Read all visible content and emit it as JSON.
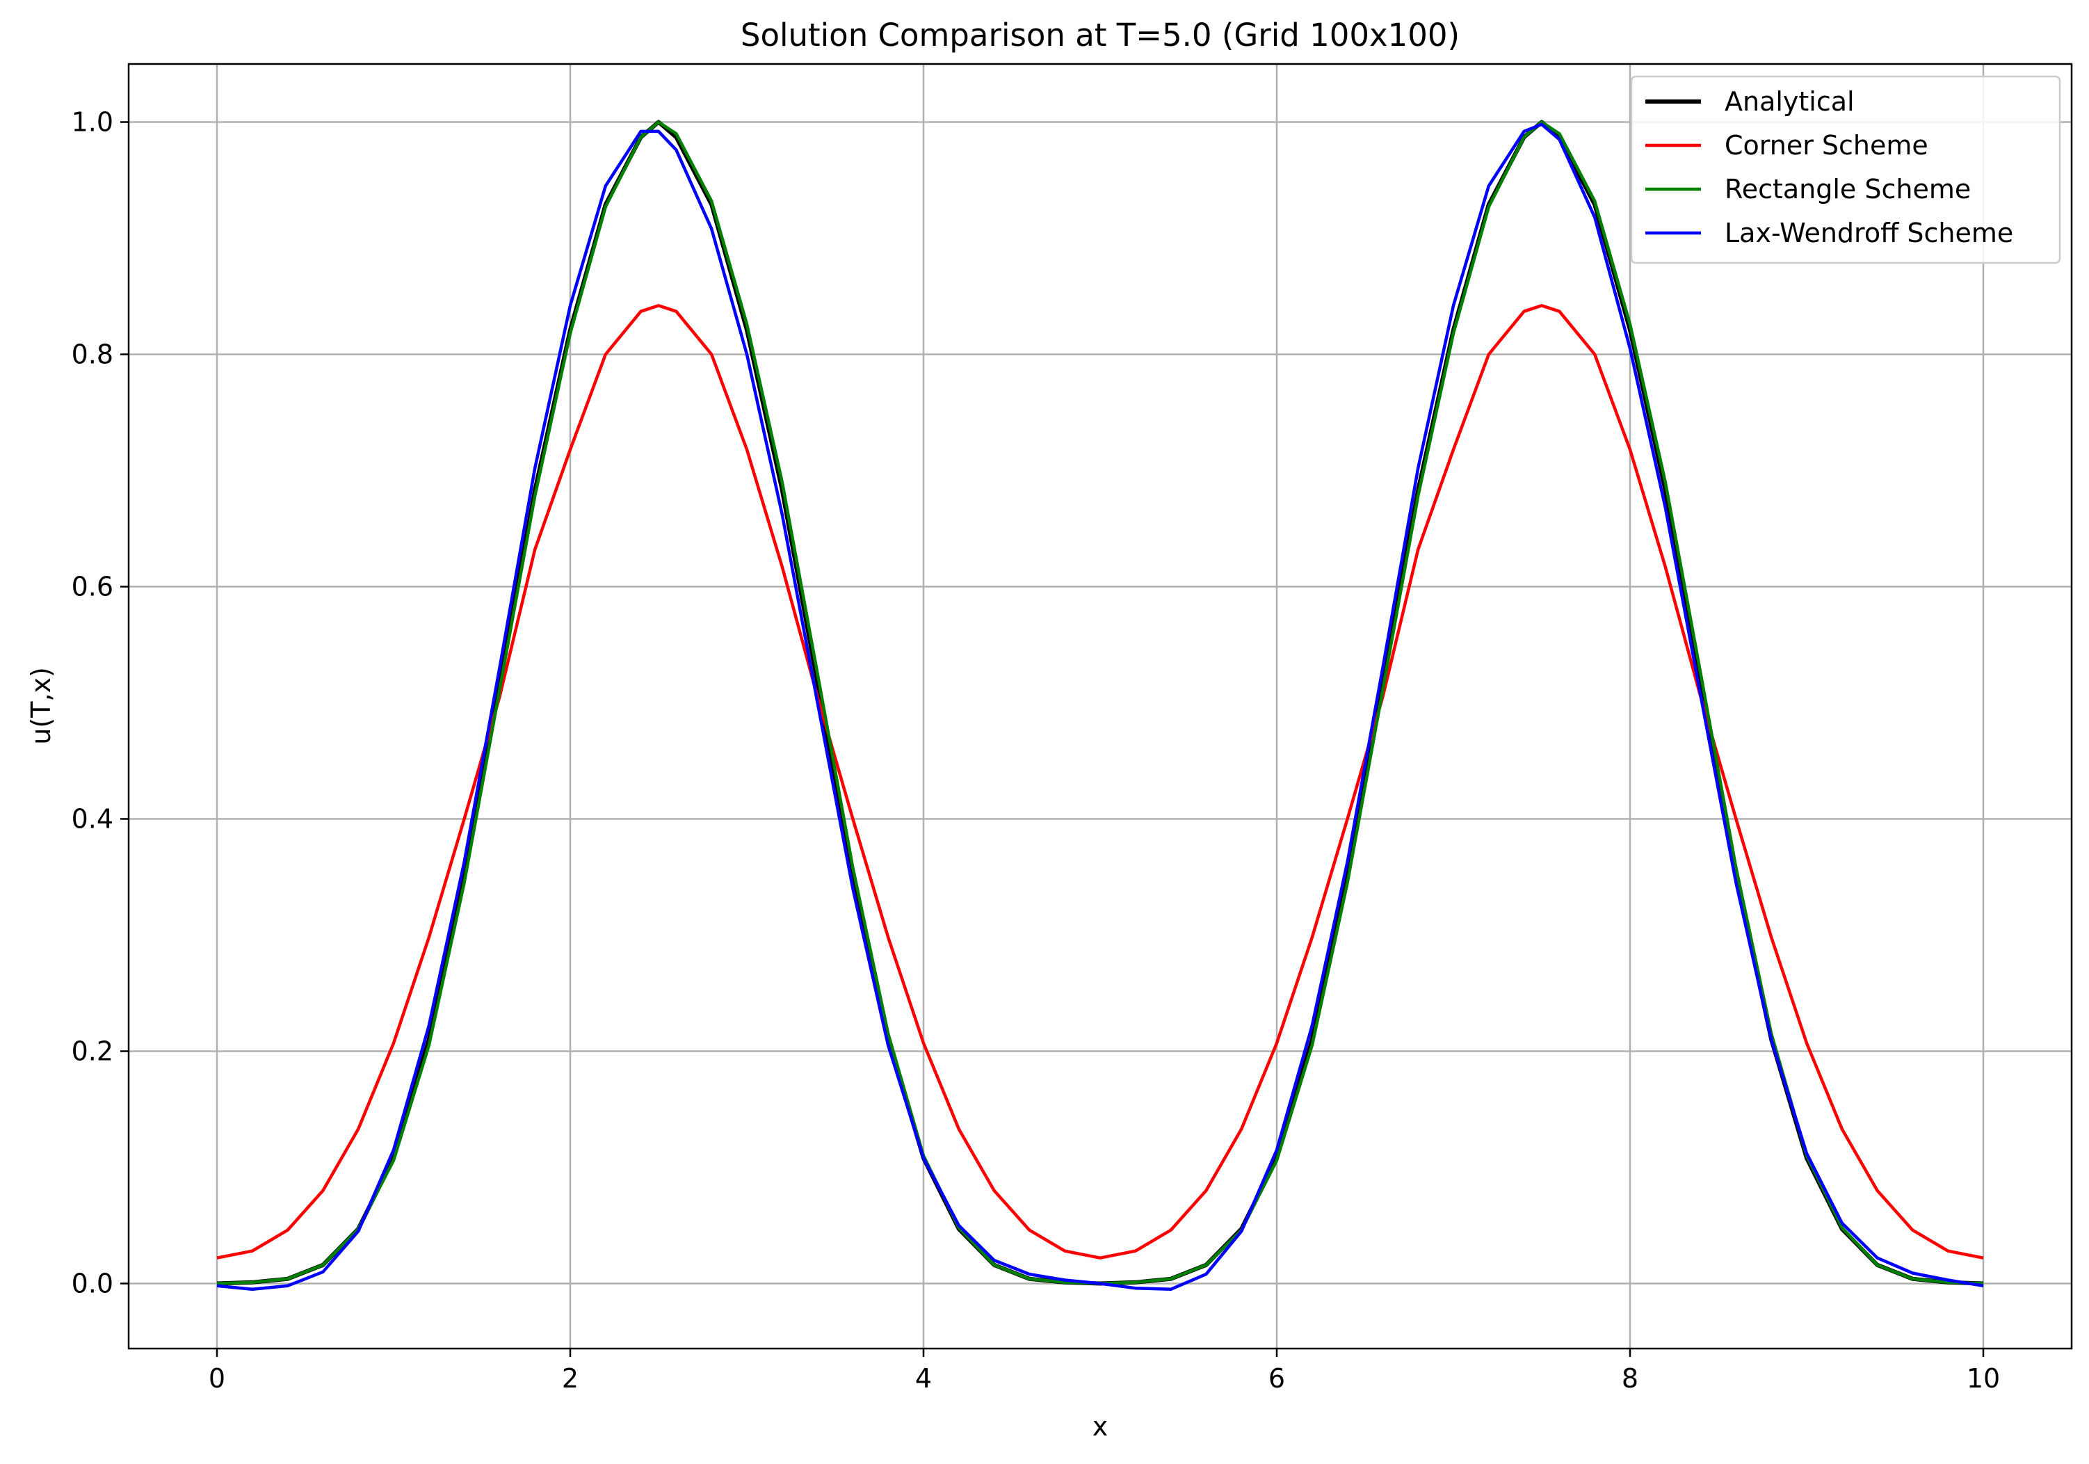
{
  "chart_data": {
    "type": "line",
    "title": "Solution Comparison at T=5.0 (Grid 100x100)",
    "xlabel": "x",
    "ylabel": "u(T,x)",
    "xlim": [
      -0.5,
      10.5
    ],
    "ylim": [
      -0.056,
      1.05
    ],
    "xticks": [
      0,
      2,
      4,
      6,
      8,
      10
    ],
    "xtick_labels": [
      "0",
      "2",
      "4",
      "6",
      "8",
      "10"
    ],
    "yticks": [
      0.0,
      0.2,
      0.4,
      0.6,
      0.8,
      1.0
    ],
    "ytick_labels": [
      "0.0",
      "0.2",
      "0.4",
      "0.6",
      "0.8",
      "1.0"
    ],
    "grid": true,
    "legend_position": "top-right",
    "series": [
      {
        "name": "Analytical",
        "color": "#000000",
        "x": [
          0,
          0.2,
          0.4,
          0.6,
          0.8,
          1.0,
          1.2,
          1.4,
          1.6,
          1.8,
          2.0,
          2.2,
          2.4,
          2.5,
          2.6,
          2.8,
          3.0,
          3.2,
          3.4,
          3.6,
          3.8,
          4.0,
          4.2,
          4.4,
          4.6,
          4.8,
          5.0,
          5.2,
          5.4,
          5.6,
          5.8,
          6.0,
          6.2,
          6.4,
          6.6,
          6.8,
          7.0,
          7.2,
          7.4,
          7.5,
          7.6,
          7.8,
          8.0,
          8.2,
          8.4,
          8.6,
          8.8,
          9.0,
          9.2,
          9.4,
          9.6,
          9.8,
          10.0
        ],
        "values": [
          0.0,
          0.001,
          0.004,
          0.016,
          0.047,
          0.108,
          0.21,
          0.351,
          0.517,
          0.683,
          0.821,
          0.929,
          0.987,
          1.0,
          0.987,
          0.929,
          0.821,
          0.683,
          0.517,
          0.351,
          0.21,
          0.108,
          0.047,
          0.016,
          0.004,
          0.001,
          0.0,
          0.001,
          0.004,
          0.016,
          0.047,
          0.108,
          0.21,
          0.351,
          0.517,
          0.683,
          0.821,
          0.929,
          0.987,
          1.0,
          0.987,
          0.929,
          0.821,
          0.683,
          0.517,
          0.351,
          0.21,
          0.108,
          0.047,
          0.016,
          0.004,
          0.001,
          0.0
        ]
      },
      {
        "name": "Corner Scheme",
        "color": "#ff0000",
        "x": [
          0,
          0.2,
          0.4,
          0.6,
          0.8,
          1.0,
          1.2,
          1.4,
          1.6,
          1.8,
          2.0,
          2.2,
          2.4,
          2.5,
          2.6,
          2.8,
          3.0,
          3.2,
          3.4,
          3.6,
          3.8,
          4.0,
          4.2,
          4.4,
          4.6,
          4.8,
          5.0,
          5.2,
          5.4,
          5.6,
          5.8,
          6.0,
          6.2,
          6.4,
          6.6,
          6.8,
          7.0,
          7.2,
          7.4,
          7.5,
          7.6,
          7.8,
          8.0,
          8.2,
          8.4,
          8.6,
          8.8,
          9.0,
          9.2,
          9.4,
          9.6,
          9.8,
          10.0
        ],
        "values": [
          0.022,
          0.028,
          0.046,
          0.08,
          0.133,
          0.207,
          0.298,
          0.4,
          0.505,
          0.632,
          0.718,
          0.8,
          0.837,
          0.842,
          0.837,
          0.8,
          0.718,
          0.617,
          0.505,
          0.4,
          0.298,
          0.207,
          0.133,
          0.08,
          0.046,
          0.028,
          0.022,
          0.028,
          0.046,
          0.08,
          0.133,
          0.207,
          0.298,
          0.4,
          0.505,
          0.632,
          0.718,
          0.8,
          0.837,
          0.842,
          0.837,
          0.8,
          0.718,
          0.617,
          0.505,
          0.4,
          0.298,
          0.207,
          0.133,
          0.08,
          0.046,
          0.028,
          0.022
        ]
      },
      {
        "name": "Rectangle Scheme",
        "color": "#008000",
        "x": [
          0,
          0.2,
          0.4,
          0.6,
          0.8,
          1.0,
          1.2,
          1.4,
          1.6,
          1.8,
          2.0,
          2.2,
          2.4,
          2.5,
          2.6,
          2.8,
          3.0,
          3.2,
          3.4,
          3.6,
          3.8,
          4.0,
          4.2,
          4.4,
          4.6,
          4.8,
          5.0,
          5.2,
          5.4,
          5.6,
          5.8,
          6.0,
          6.2,
          6.4,
          6.6,
          6.8,
          7.0,
          7.2,
          7.4,
          7.5,
          7.6,
          7.8,
          8.0,
          8.2,
          8.4,
          8.6,
          8.8,
          9.0,
          9.2,
          9.4,
          9.6,
          9.8,
          10.0
        ],
        "values": [
          0.0,
          0.001,
          0.004,
          0.016,
          0.047,
          0.106,
          0.205,
          0.345,
          0.511,
          0.678,
          0.818,
          0.927,
          0.987,
          1.0,
          0.99,
          0.932,
          0.826,
          0.69,
          0.525,
          0.358,
          0.215,
          0.11,
          0.048,
          0.016,
          0.004,
          0.001,
          0.0,
          0.001,
          0.004,
          0.016,
          0.046,
          0.106,
          0.205,
          0.345,
          0.511,
          0.678,
          0.818,
          0.927,
          0.987,
          1.0,
          0.99,
          0.932,
          0.826,
          0.69,
          0.525,
          0.358,
          0.215,
          0.11,
          0.048,
          0.016,
          0.004,
          0.001,
          0.0
        ]
      },
      {
        "name": "Lax-Wendroff Scheme",
        "color": "#0000ff",
        "x": [
          0,
          0.2,
          0.4,
          0.6,
          0.8,
          1.0,
          1.2,
          1.4,
          1.6,
          1.8,
          2.0,
          2.2,
          2.4,
          2.5,
          2.6,
          2.8,
          3.0,
          3.2,
          3.4,
          3.6,
          3.8,
          4.0,
          4.2,
          4.4,
          4.6,
          4.8,
          5.0,
          5.2,
          5.4,
          5.6,
          5.8,
          6.0,
          6.2,
          6.4,
          6.6,
          6.8,
          7.0,
          7.2,
          7.4,
          7.5,
          7.6,
          7.8,
          8.0,
          8.2,
          8.4,
          8.6,
          8.8,
          9.0,
          9.2,
          9.4,
          9.6,
          9.8,
          10.0
        ],
        "values": [
          -0.002,
          -0.005,
          -0.002,
          0.01,
          0.045,
          0.115,
          0.222,
          0.363,
          0.53,
          0.702,
          0.842,
          0.945,
          0.992,
          0.992,
          0.976,
          0.908,
          0.8,
          0.662,
          0.5,
          0.34,
          0.205,
          0.108,
          0.05,
          0.02,
          0.008,
          0.003,
          0.0,
          -0.004,
          -0.005,
          0.008,
          0.045,
          0.115,
          0.222,
          0.363,
          0.53,
          0.702,
          0.842,
          0.945,
          0.992,
          0.998,
          0.985,
          0.918,
          0.805,
          0.668,
          0.506,
          0.345,
          0.21,
          0.112,
          0.052,
          0.022,
          0.009,
          0.003,
          -0.002
        ]
      }
    ]
  }
}
